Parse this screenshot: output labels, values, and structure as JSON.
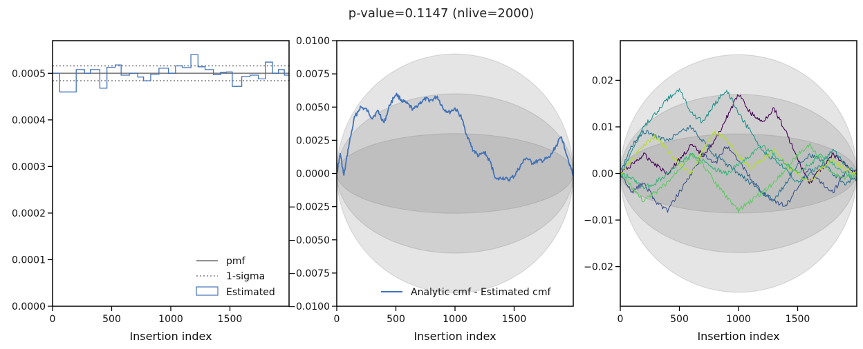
{
  "figure": {
    "suptitle": "p-value=0.1147 (nlive=2000)"
  },
  "colors": {
    "blue": "#4272b8",
    "gray": "#808080",
    "band": "#7f7f7f",
    "viridis": [
      "#440154",
      "#3b528b",
      "#21918c",
      "#5ec962",
      "#b5de2b",
      "#fde725"
    ]
  },
  "chart_data": [
    {
      "type": "line",
      "panel": "histogram",
      "xlabel": "Insertion index",
      "xlim": [
        0,
        2000
      ],
      "ylim": [
        0,
        0.00057
      ],
      "xticks": [
        "0",
        "500",
        "1000",
        "1500"
      ],
      "yticks": [
        "0.0000",
        "0.0001",
        "0.0002",
        "0.0003",
        "0.0004",
        "0.0005"
      ],
      "pmf": 0.0005,
      "sigma_band": [
        0.000484,
        0.000516
      ],
      "legend_position": "lower-right",
      "legend": [
        "pmf",
        "1-sigma",
        "Estimated"
      ],
      "estimated_bin_edges": [
        0,
        60,
        200,
        270,
        320,
        400,
        460,
        530,
        580,
        650,
        720,
        770,
        830,
        900,
        980,
        1040,
        1100,
        1170,
        1230,
        1290,
        1360,
        1420,
        1470,
        1520,
        1600,
        1670,
        1740,
        1800,
        1860,
        1910,
        1960,
        2000
      ],
      "estimated_values": [
        0.0005,
        0.00046,
        0.000508,
        0.0005,
        0.000508,
        0.000468,
        0.000513,
        0.000518,
        0.000496,
        0.0005,
        0.000492,
        0.000484,
        0.000498,
        0.000511,
        0.0005,
        0.000516,
        0.000512,
        0.00054,
        0.000514,
        0.000508,
        0.000497,
        0.000502,
        0.000503,
        0.000472,
        0.000493,
        0.000496,
        0.000488,
        0.000524,
        0.0005,
        0.000508,
        0.000496
      ]
    },
    {
      "type": "line",
      "panel": "cmf-difference",
      "xlabel": "Insertion index",
      "xlim": [
        0,
        2000
      ],
      "ylim": [
        -0.01,
        0.01
      ],
      "xticks": [
        "0",
        "500",
        "1000",
        "1500"
      ],
      "yticks": [
        "−0.0100",
        "−0.0075",
        "−0.0050",
        "−0.0025",
        "0.0000",
        "0.0025",
        "0.0050",
        "0.0075",
        "0.0100"
      ],
      "sigma_levels": [
        0.003,
        0.006,
        0.009
      ],
      "legend_position": "lower-right",
      "legend": [
        "Analytic cmf - Estimated cmf"
      ],
      "series": [
        {
          "name": "Analytic cmf - Estimated cmf",
          "x": [
            0,
            30,
            60,
            100,
            150,
            200,
            250,
            300,
            350,
            400,
            450,
            500,
            550,
            600,
            650,
            700,
            750,
            800,
            850,
            900,
            950,
            1000,
            1050,
            1100,
            1150,
            1200,
            1250,
            1300,
            1350,
            1400,
            1450,
            1500,
            1550,
            1600,
            1650,
            1700,
            1750,
            1800,
            1850,
            1900,
            1950,
            2000
          ],
          "y": [
            0.0,
            0.0015,
            -0.0002,
            0.002,
            0.0042,
            0.005,
            0.0048,
            0.0042,
            0.0047,
            0.0038,
            0.0052,
            0.006,
            0.0055,
            0.0052,
            0.0048,
            0.0053,
            0.0056,
            0.0055,
            0.0058,
            0.0049,
            0.0046,
            0.0049,
            0.0043,
            0.0029,
            0.0018,
            0.0013,
            0.0016,
            0.0008,
            -0.0005,
            -0.0003,
            -0.0005,
            -0.0002,
            0.0005,
            0.0012,
            0.0008,
            0.0009,
            0.001,
            0.0012,
            0.002,
            0.0028,
            0.0013,
            -0.0002
          ]
        }
      ]
    },
    {
      "type": "line",
      "panel": "runs",
      "xlabel": "Insertion index",
      "xlim": [
        0,
        2000
      ],
      "ylim": [
        -0.0285,
        0.0285
      ],
      "xticks": [
        "0",
        "500",
        "1000",
        "1500"
      ],
      "yticks": [
        "−0.02",
        "−0.01",
        "0.00",
        "0.01",
        "0.02"
      ],
      "sigma_levels": [
        0.0085,
        0.017,
        0.0255
      ],
      "x": [
        0,
        100,
        200,
        300,
        400,
        500,
        600,
        700,
        800,
        900,
        1000,
        1100,
        1200,
        1300,
        1400,
        1500,
        1600,
        1700,
        1800,
        1900,
        2000
      ],
      "series": [
        {
          "y": [
            0.0,
            0.002,
            0.004,
            0.002,
            0.0,
            0.003,
            0.006,
            0.004,
            0.007,
            0.012,
            0.017,
            0.013,
            0.011,
            0.014,
            0.009,
            0.003,
            -0.002,
            0.001,
            0.004,
            0.002,
            0.0
          ]
        },
        {
          "y": [
            0.0,
            -0.004,
            -0.002,
            -0.006,
            -0.008,
            -0.004,
            0.0,
            0.004,
            0.002,
            0.006,
            0.003,
            -0.001,
            -0.004,
            -0.006,
            -0.007,
            -0.003,
            0.001,
            -0.002,
            -0.004,
            0.0,
            0.001
          ]
        },
        {
          "y": [
            0.0,
            0.005,
            0.01,
            0.013,
            0.016,
            0.018,
            0.013,
            0.011,
            0.015,
            0.018,
            0.013,
            0.009,
            0.005,
            0.003,
            0.001,
            -0.002,
            0.0,
            0.002,
            0.005,
            0.002,
            0.0
          ]
        },
        {
          "y": [
            0.0,
            0.006,
            0.009,
            0.008,
            0.007,
            0.009,
            0.01,
            0.007,
            0.004,
            0.002,
            0.0,
            -0.002,
            -0.004,
            -0.006,
            -0.002,
            0.002,
            0.004,
            0.003,
            0.0,
            -0.002,
            -0.001
          ]
        },
        {
          "y": [
            0.0,
            -0.003,
            -0.006,
            -0.004,
            -0.002,
            0.001,
            0.004,
            0.002,
            -0.002,
            -0.005,
            -0.008,
            -0.006,
            -0.004,
            -0.002,
            0.001,
            0.004,
            0.006,
            0.003,
            0.0,
            -0.001,
            0.0
          ]
        },
        {
          "y": [
            0.0,
            0.003,
            0.006,
            0.008,
            0.005,
            0.002,
            0.0,
            0.005,
            0.009,
            0.007,
            0.004,
            0.001,
            0.003,
            0.005,
            0.002,
            0.0,
            -0.002,
            0.001,
            0.003,
            0.001,
            0.0
          ]
        },
        {
          "y": [
            0.0,
            -0.001,
            -0.003,
            -0.002,
            0.0,
            0.002,
            0.004,
            0.003,
            0.001,
            0.0,
            0.002,
            0.004,
            0.006,
            0.004,
            0.002,
            0.0,
            0.002,
            0.004,
            0.002,
            0.0,
            -0.001
          ]
        }
      ]
    }
  ]
}
